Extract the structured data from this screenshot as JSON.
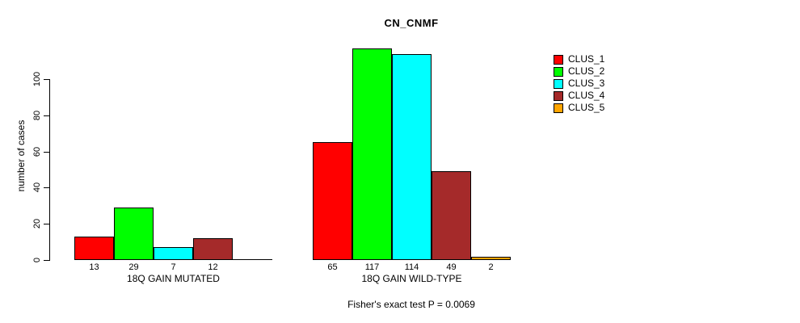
{
  "title": "CN_CNMF",
  "y_axis": {
    "label": "number of cases",
    "tick_labels": [
      "0",
      "20",
      "40",
      "60",
      "80",
      "100"
    ]
  },
  "legend": {
    "items": [
      {
        "label": "CLUS_1",
        "color": "#FF0000"
      },
      {
        "label": "CLUS_2",
        "color": "#00FF00"
      },
      {
        "label": "CLUS_3",
        "color": "#00FFFF"
      },
      {
        "label": "CLUS_4",
        "color": "#A52A2A"
      },
      {
        "label": "CLUS_5",
        "color": "#FFA500"
      }
    ]
  },
  "footnote": "Fisher's exact test P = 0.0069",
  "chart_data": {
    "type": "bar",
    "title": "CN_CNMF",
    "xlabel": "",
    "ylabel": "number of cases",
    "ylim": [
      0,
      120
    ],
    "yticks": [
      0,
      20,
      40,
      60,
      80,
      100
    ],
    "grid": false,
    "legend_position": "right-outside",
    "series_names": [
      "CLUS_1",
      "CLUS_2",
      "CLUS_3",
      "CLUS_4",
      "CLUS_5"
    ],
    "colors": [
      "#FF0000",
      "#00FF00",
      "#00FFFF",
      "#A52A2A",
      "#FFA500"
    ],
    "groups": [
      {
        "label": "18Q GAIN MUTATED",
        "values": [
          13,
          29,
          7,
          12,
          0
        ],
        "value_labels": [
          "13",
          "29",
          "7",
          "12",
          ""
        ]
      },
      {
        "label": "18Q GAIN WILD-TYPE",
        "values": [
          65,
          117,
          114,
          49,
          2
        ],
        "value_labels": [
          "65",
          "117",
          "114",
          "49",
          "2"
        ]
      }
    ],
    "annotation": "Fisher's exact test P = 0.0069"
  }
}
